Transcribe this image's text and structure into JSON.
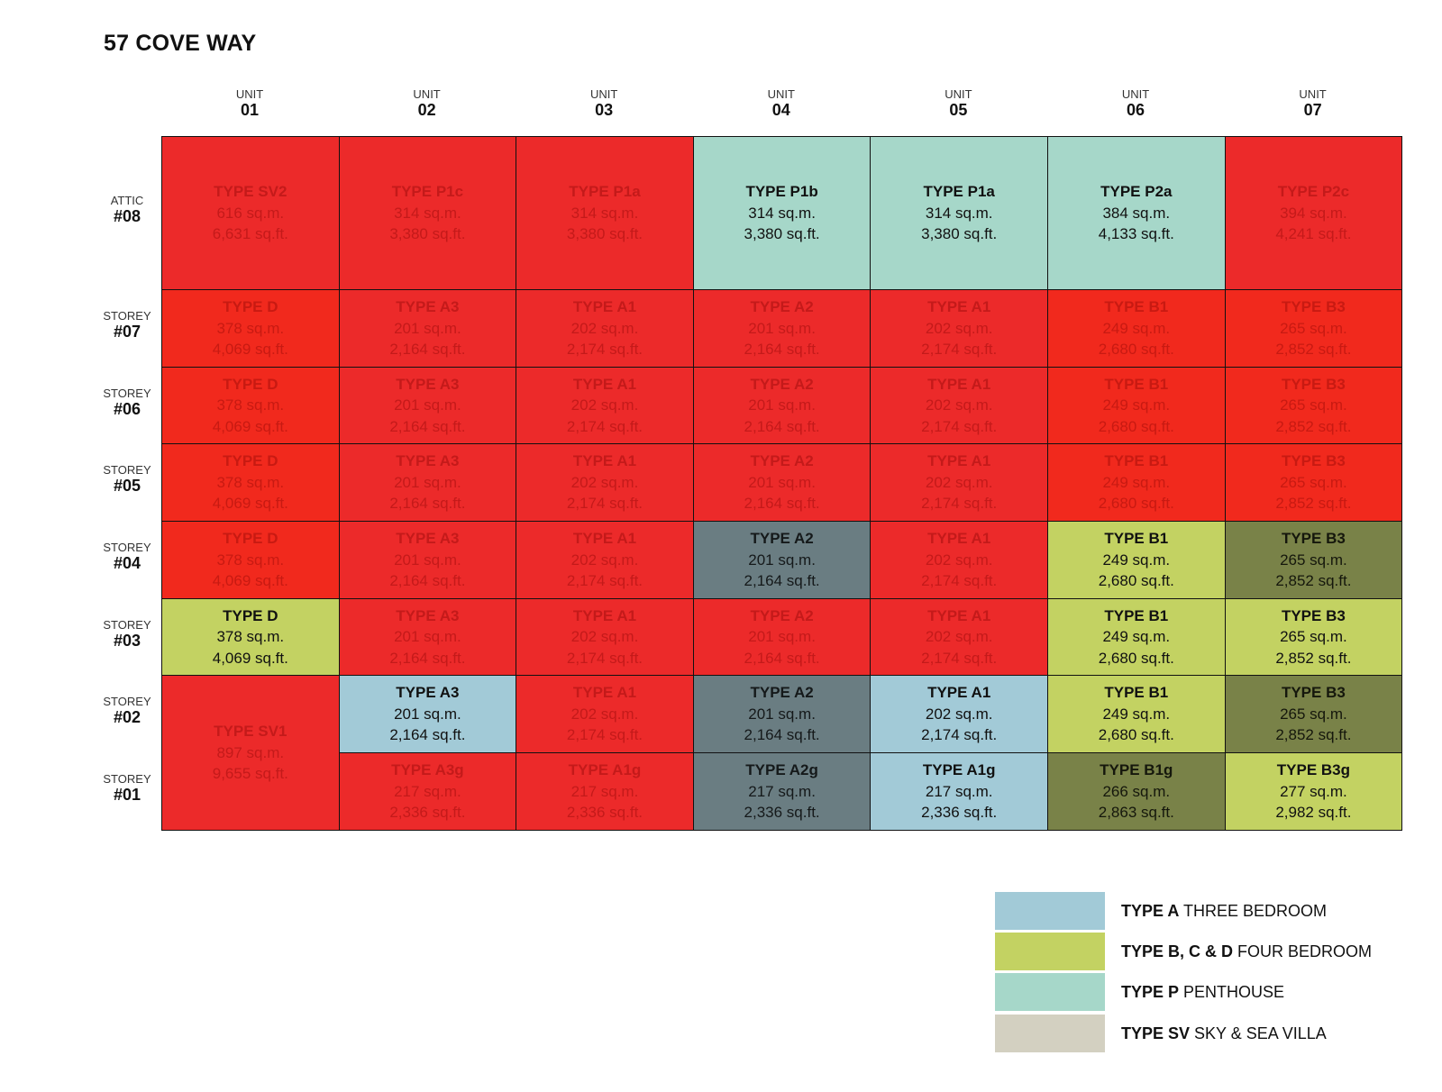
{
  "title": "57 COVE WAY",
  "unit_label": "UNIT",
  "columns": [
    "01",
    "02",
    "03",
    "04",
    "05",
    "06",
    "07"
  ],
  "rows": [
    {
      "label": "ATTIC",
      "number": "#08"
    },
    {
      "label": "STOREY",
      "number": "#07"
    },
    {
      "label": "STOREY",
      "number": "#06"
    },
    {
      "label": "STOREY",
      "number": "#05"
    },
    {
      "label": "STOREY",
      "number": "#04"
    },
    {
      "label": "STOREY",
      "number": "#03"
    },
    {
      "label": "STOREY",
      "number": "#02"
    },
    {
      "label": "STOREY",
      "number": "#01"
    }
  ],
  "colors": {
    "red": "#ec2a2a",
    "red2": "#f1291d",
    "pent": "#a6d7c9",
    "slate": "#6a7d82",
    "lblue": "#a2cad7",
    "lime": "#c3d262",
    "olive": "#798248",
    "sv": "#d3d0c1"
  },
  "cells": [
    {
      "col": 0,
      "row": 0,
      "rowspan": 1,
      "type": "TYPE SV2",
      "sqm": "616 sq.m.",
      "sqft": "6,631 sq.ft.",
      "color": "red"
    },
    {
      "col": 1,
      "row": 0,
      "rowspan": 1,
      "type": "TYPE P1c",
      "sqm": "314 sq.m.",
      "sqft": "3,380 sq.ft.",
      "color": "red"
    },
    {
      "col": 2,
      "row": 0,
      "rowspan": 1,
      "type": "TYPE P1a",
      "sqm": "314 sq.m.",
      "sqft": "3,380 sq.ft.",
      "color": "red"
    },
    {
      "col": 3,
      "row": 0,
      "rowspan": 1,
      "type": "TYPE P1b",
      "sqm": "314 sq.m.",
      "sqft": "3,380 sq.ft.",
      "color": "pent"
    },
    {
      "col": 4,
      "row": 0,
      "rowspan": 1,
      "type": "TYPE P1a",
      "sqm": "314 sq.m.",
      "sqft": "3,380 sq.ft.",
      "color": "pent"
    },
    {
      "col": 5,
      "row": 0,
      "rowspan": 1,
      "type": "TYPE P2a",
      "sqm": "384 sq.m.",
      "sqft": "4,133 sq.ft.",
      "color": "pent"
    },
    {
      "col": 6,
      "row": 0,
      "rowspan": 1,
      "type": "TYPE P2c",
      "sqm": "394 sq.m.",
      "sqft": "4,241 sq.ft.",
      "color": "red"
    },
    {
      "col": 0,
      "row": 1,
      "rowspan": 1,
      "type": "TYPE D",
      "sqm": "378 sq.m.",
      "sqft": "4,069 sq.ft.",
      "color": "red2"
    },
    {
      "col": 1,
      "row": 1,
      "rowspan": 1,
      "type": "TYPE A3",
      "sqm": "201 sq.m.",
      "sqft": "2,164 sq.ft.",
      "color": "red"
    },
    {
      "col": 2,
      "row": 1,
      "rowspan": 1,
      "type": "TYPE A1",
      "sqm": "202 sq.m.",
      "sqft": "2,174 sq.ft.",
      "color": "red"
    },
    {
      "col": 3,
      "row": 1,
      "rowspan": 1,
      "type": "TYPE A2",
      "sqm": "201 sq.m.",
      "sqft": "2,164 sq.ft.",
      "color": "red"
    },
    {
      "col": 4,
      "row": 1,
      "rowspan": 1,
      "type": "TYPE A1",
      "sqm": "202 sq.m.",
      "sqft": "2,174 sq.ft.",
      "color": "red"
    },
    {
      "col": 5,
      "row": 1,
      "rowspan": 1,
      "type": "TYPE B1",
      "sqm": "249 sq.m.",
      "sqft": "2,680 sq.ft.",
      "color": "red2"
    },
    {
      "col": 6,
      "row": 1,
      "rowspan": 1,
      "type": "TYPE B3",
      "sqm": "265 sq.m.",
      "sqft": "2,852 sq.ft.",
      "color": "red2"
    },
    {
      "col": 0,
      "row": 2,
      "rowspan": 1,
      "type": "TYPE D",
      "sqm": "378 sq.m.",
      "sqft": "4,069 sq.ft.",
      "color": "red2"
    },
    {
      "col": 1,
      "row": 2,
      "rowspan": 1,
      "type": "TYPE A3",
      "sqm": "201 sq.m.",
      "sqft": "2,164 sq.ft.",
      "color": "red"
    },
    {
      "col": 2,
      "row": 2,
      "rowspan": 1,
      "type": "TYPE A1",
      "sqm": "202 sq.m.",
      "sqft": "2,174 sq.ft.",
      "color": "red"
    },
    {
      "col": 3,
      "row": 2,
      "rowspan": 1,
      "type": "TYPE A2",
      "sqm": "201 sq.m.",
      "sqft": "2,164 sq.ft.",
      "color": "red"
    },
    {
      "col": 4,
      "row": 2,
      "rowspan": 1,
      "type": "TYPE A1",
      "sqm": "202 sq.m.",
      "sqft": "2,174 sq.ft.",
      "color": "red"
    },
    {
      "col": 5,
      "row": 2,
      "rowspan": 1,
      "type": "TYPE B1",
      "sqm": "249 sq.m.",
      "sqft": "2,680 sq.ft.",
      "color": "red2"
    },
    {
      "col": 6,
      "row": 2,
      "rowspan": 1,
      "type": "TYPE B3",
      "sqm": "265 sq.m.",
      "sqft": "2,852 sq.ft.",
      "color": "red2"
    },
    {
      "col": 0,
      "row": 3,
      "rowspan": 1,
      "type": "TYPE D",
      "sqm": "378 sq.m.",
      "sqft": "4,069 sq.ft.",
      "color": "red2"
    },
    {
      "col": 1,
      "row": 3,
      "rowspan": 1,
      "type": "TYPE A3",
      "sqm": "201 sq.m.",
      "sqft": "2,164 sq.ft.",
      "color": "red"
    },
    {
      "col": 2,
      "row": 3,
      "rowspan": 1,
      "type": "TYPE A1",
      "sqm": "202 sq.m.",
      "sqft": "2,174 sq.ft.",
      "color": "red"
    },
    {
      "col": 3,
      "row": 3,
      "rowspan": 1,
      "type": "TYPE A2",
      "sqm": "201 sq.m.",
      "sqft": "2,164 sq.ft.",
      "color": "red"
    },
    {
      "col": 4,
      "row": 3,
      "rowspan": 1,
      "type": "TYPE A1",
      "sqm": "202 sq.m.",
      "sqft": "2,174 sq.ft.",
      "color": "red"
    },
    {
      "col": 5,
      "row": 3,
      "rowspan": 1,
      "type": "TYPE B1",
      "sqm": "249 sq.m.",
      "sqft": "2,680 sq.ft.",
      "color": "red2"
    },
    {
      "col": 6,
      "row": 3,
      "rowspan": 1,
      "type": "TYPE B3",
      "sqm": "265 sq.m.",
      "sqft": "2,852 sq.ft.",
      "color": "red2"
    },
    {
      "col": 0,
      "row": 4,
      "rowspan": 1,
      "type": "TYPE D",
      "sqm": "378 sq.m.",
      "sqft": "4,069 sq.ft.",
      "color": "red2"
    },
    {
      "col": 1,
      "row": 4,
      "rowspan": 1,
      "type": "TYPE A3",
      "sqm": "201 sq.m.",
      "sqft": "2,164 sq.ft.",
      "color": "red"
    },
    {
      "col": 2,
      "row": 4,
      "rowspan": 1,
      "type": "TYPE A1",
      "sqm": "202 sq.m.",
      "sqft": "2,174 sq.ft.",
      "color": "red"
    },
    {
      "col": 3,
      "row": 4,
      "rowspan": 1,
      "type": "TYPE A2",
      "sqm": "201 sq.m.",
      "sqft": "2,164 sq.ft.",
      "color": "slate"
    },
    {
      "col": 4,
      "row": 4,
      "rowspan": 1,
      "type": "TYPE A1",
      "sqm": "202 sq.m.",
      "sqft": "2,174 sq.ft.",
      "color": "red"
    },
    {
      "col": 5,
      "row": 4,
      "rowspan": 1,
      "type": "TYPE B1",
      "sqm": "249 sq.m.",
      "sqft": "2,680 sq.ft.",
      "color": "lime"
    },
    {
      "col": 6,
      "row": 4,
      "rowspan": 1,
      "type": "TYPE B3",
      "sqm": "265 sq.m.",
      "sqft": "2,852 sq.ft.",
      "color": "olive"
    },
    {
      "col": 0,
      "row": 5,
      "rowspan": 1,
      "type": "TYPE D",
      "sqm": "378 sq.m.",
      "sqft": "4,069 sq.ft.",
      "color": "lime"
    },
    {
      "col": 1,
      "row": 5,
      "rowspan": 1,
      "type": "TYPE A3",
      "sqm": "201 sq.m.",
      "sqft": "2,164 sq.ft.",
      "color": "red"
    },
    {
      "col": 2,
      "row": 5,
      "rowspan": 1,
      "type": "TYPE A1",
      "sqm": "202 sq.m.",
      "sqft": "2,174 sq.ft.",
      "color": "red"
    },
    {
      "col": 3,
      "row": 5,
      "rowspan": 1,
      "type": "TYPE A2",
      "sqm": "201 sq.m.",
      "sqft": "2,164 sq.ft.",
      "color": "red"
    },
    {
      "col": 4,
      "row": 5,
      "rowspan": 1,
      "type": "TYPE A1",
      "sqm": "202 sq.m.",
      "sqft": "2,174 sq.ft.",
      "color": "red"
    },
    {
      "col": 5,
      "row": 5,
      "rowspan": 1,
      "type": "TYPE B1",
      "sqm": "249 sq.m.",
      "sqft": "2,680 sq.ft.",
      "color": "lime"
    },
    {
      "col": 6,
      "row": 5,
      "rowspan": 1,
      "type": "TYPE B3",
      "sqm": "265 sq.m.",
      "sqft": "2,852 sq.ft.",
      "color": "lime"
    },
    {
      "col": 0,
      "row": 6,
      "rowspan": 2,
      "type": "TYPE SV1",
      "sqm": "897 sq.m.",
      "sqft": "9,655 sq.ft.",
      "color": "red"
    },
    {
      "col": 1,
      "row": 6,
      "rowspan": 1,
      "type": "TYPE A3",
      "sqm": "201 sq.m.",
      "sqft": "2,164 sq.ft.",
      "color": "lblue"
    },
    {
      "col": 2,
      "row": 6,
      "rowspan": 1,
      "type": "TYPE A1",
      "sqm": "202 sq.m.",
      "sqft": "2,174 sq.ft.",
      "color": "red"
    },
    {
      "col": 3,
      "row": 6,
      "rowspan": 1,
      "type": "TYPE A2",
      "sqm": "201 sq.m.",
      "sqft": "2,164 sq.ft.",
      "color": "slate"
    },
    {
      "col": 4,
      "row": 6,
      "rowspan": 1,
      "type": "TYPE A1",
      "sqm": "202 sq.m.",
      "sqft": "2,174 sq.ft.",
      "color": "lblue"
    },
    {
      "col": 5,
      "row": 6,
      "rowspan": 1,
      "type": "TYPE B1",
      "sqm": "249 sq.m.",
      "sqft": "2,680 sq.ft.",
      "color": "lime"
    },
    {
      "col": 6,
      "row": 6,
      "rowspan": 1,
      "type": "TYPE B3",
      "sqm": "265 sq.m.",
      "sqft": "2,852 sq.ft.",
      "color": "olive"
    },
    {
      "col": 1,
      "row": 7,
      "rowspan": 1,
      "type": "TYPE A3g",
      "sqm": "217 sq.m.",
      "sqft": "2,336 sq.ft.",
      "color": "red"
    },
    {
      "col": 2,
      "row": 7,
      "rowspan": 1,
      "type": "TYPE A1g",
      "sqm": "217 sq.m.",
      "sqft": "2,336 sq.ft.",
      "color": "red"
    },
    {
      "col": 3,
      "row": 7,
      "rowspan": 1,
      "type": "TYPE A2g",
      "sqm": "217 sq.m.",
      "sqft": "2,336 sq.ft.",
      "color": "slate"
    },
    {
      "col": 4,
      "row": 7,
      "rowspan": 1,
      "type": "TYPE A1g",
      "sqm": "217 sq.m.",
      "sqft": "2,336 sq.ft.",
      "color": "lblue"
    },
    {
      "col": 5,
      "row": 7,
      "rowspan": 1,
      "type": "TYPE B1g",
      "sqm": "266 sq.m.",
      "sqft": "2,863 sq.ft.",
      "color": "olive"
    },
    {
      "col": 6,
      "row": 7,
      "rowspan": 1,
      "type": "TYPE B3g",
      "sqm": "277 sq.m.",
      "sqft": "2,982 sq.ft.",
      "color": "lime"
    }
  ],
  "legend": [
    {
      "bold": "TYPE A",
      "text": " THREE BEDROOM",
      "color": "lblue"
    },
    {
      "bold": "TYPE B, C & D",
      "text": " FOUR BEDROOM",
      "color": "lime"
    },
    {
      "bold": "TYPE P",
      "text": " PENTHOUSE",
      "color": "pent"
    },
    {
      "bold": "TYPE SV",
      "text": " SKY & SEA VILLA",
      "color": "sv"
    }
  ]
}
